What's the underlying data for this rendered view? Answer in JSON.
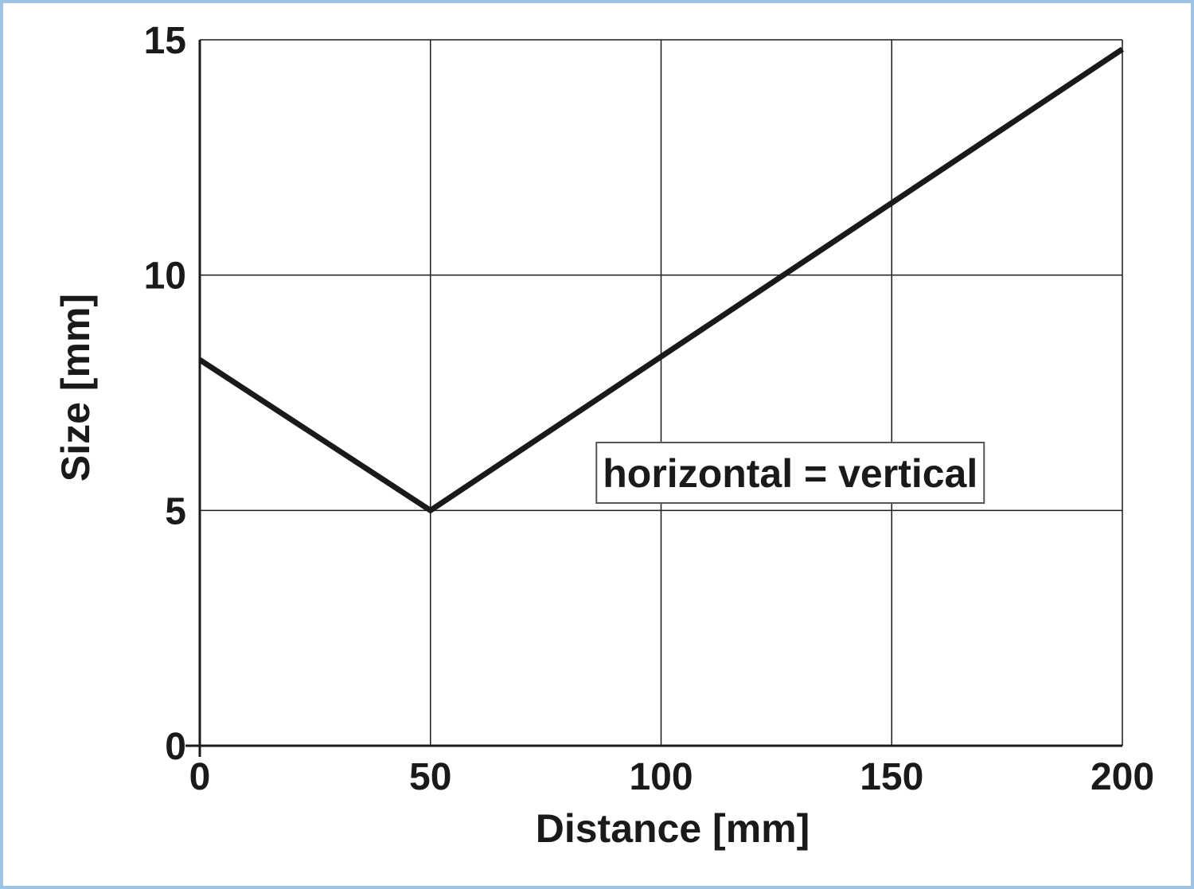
{
  "chart_data": {
    "type": "line",
    "title": "",
    "xlabel": "Distance [mm]",
    "ylabel": "Size [mm]",
    "xlim": [
      0,
      200
    ],
    "ylim": [
      0,
      15
    ],
    "x_ticks": [
      0,
      50,
      100,
      150,
      200
    ],
    "y_ticks": [
      0,
      5,
      10,
      15
    ],
    "x_tick_labels": [
      "0",
      "50",
      "100",
      "150",
      "200"
    ],
    "y_tick_labels": [
      "0",
      "5",
      "10",
      "15"
    ],
    "grid": true,
    "series": [
      {
        "x": [
          0,
          50,
          200
        ],
        "y": [
          8.2,
          5.0,
          14.8
        ]
      }
    ],
    "annotation": {
      "text": "horizontal = vertical",
      "x": 128,
      "y": 5.8
    },
    "colors": {
      "line": "#1a1a1a",
      "border": "#9cc3e3"
    }
  }
}
